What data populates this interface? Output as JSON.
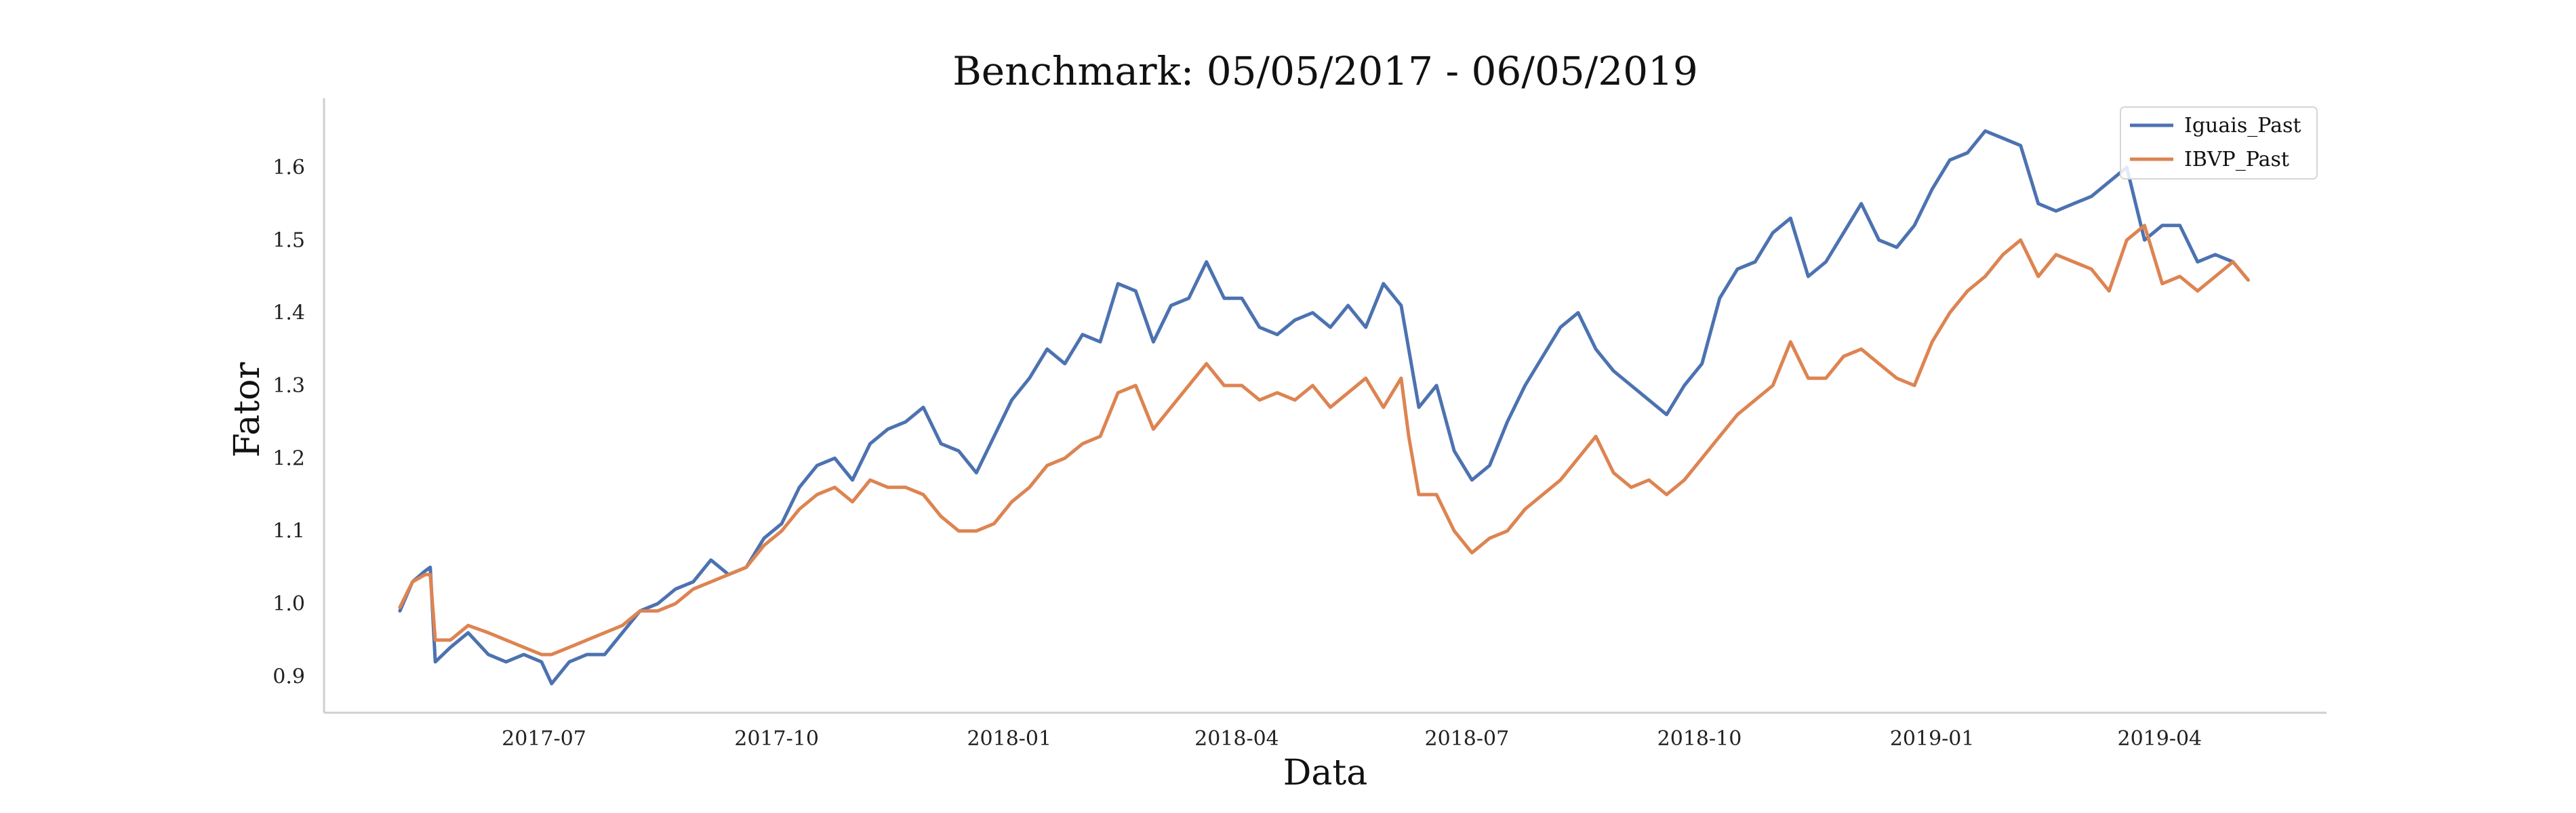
{
  "chart_data": {
    "type": "line",
    "title": "Benchmark: 05/05/2017 - 06/05/2019",
    "xlabel": "Data",
    "ylabel": "Fator",
    "x_ticks": [
      "2017-07",
      "2017-10",
      "2018-01",
      "2018-04",
      "2018-07",
      "2018-10",
      "2019-01",
      "2019-04"
    ],
    "y_ticks": [
      "0.9",
      "1.0",
      "1.1",
      "1.2",
      "1.3",
      "1.4",
      "1.5",
      "1.6"
    ],
    "xlim": [
      "2017-04-05",
      "2019-06-06"
    ],
    "ylim": [
      0.85,
      1.695
    ],
    "grid": false,
    "legend": "top-right",
    "series": [
      {
        "name": "Iguais_Past",
        "color": "#4c72b0",
        "points": [
          [
            "2017-05-05",
            0.99
          ],
          [
            "2017-05-10",
            1.03
          ],
          [
            "2017-05-15",
            1.045
          ],
          [
            "2017-05-17",
            1.05
          ],
          [
            "2017-05-19",
            0.92
          ],
          [
            "2017-05-25",
            0.94
          ],
          [
            "2017-06-01",
            0.96
          ],
          [
            "2017-06-09",
            0.93
          ],
          [
            "2017-06-16",
            0.92
          ],
          [
            "2017-06-23",
            0.93
          ],
          [
            "2017-06-30",
            0.92
          ],
          [
            "2017-07-04",
            0.89
          ],
          [
            "2017-07-11",
            0.92
          ],
          [
            "2017-07-18",
            0.93
          ],
          [
            "2017-07-25",
            0.93
          ],
          [
            "2017-08-01",
            0.96
          ],
          [
            "2017-08-08",
            0.99
          ],
          [
            "2017-08-15",
            1.0
          ],
          [
            "2017-08-22",
            1.02
          ],
          [
            "2017-08-29",
            1.03
          ],
          [
            "2017-09-05",
            1.06
          ],
          [
            "2017-09-12",
            1.04
          ],
          [
            "2017-09-19",
            1.05
          ],
          [
            "2017-09-26",
            1.09
          ],
          [
            "2017-10-03",
            1.11
          ],
          [
            "2017-10-10",
            1.16
          ],
          [
            "2017-10-17",
            1.19
          ],
          [
            "2017-10-24",
            1.2
          ],
          [
            "2017-10-31",
            1.17
          ],
          [
            "2017-11-07",
            1.22
          ],
          [
            "2017-11-14",
            1.24
          ],
          [
            "2017-11-21",
            1.25
          ],
          [
            "2017-11-28",
            1.27
          ],
          [
            "2017-12-05",
            1.22
          ],
          [
            "2017-12-12",
            1.21
          ],
          [
            "2017-12-19",
            1.18
          ],
          [
            "2017-12-26",
            1.23
          ],
          [
            "2018-01-02",
            1.28
          ],
          [
            "2018-01-09",
            1.31
          ],
          [
            "2018-01-16",
            1.35
          ],
          [
            "2018-01-23",
            1.33
          ],
          [
            "2018-01-30",
            1.37
          ],
          [
            "2018-02-06",
            1.36
          ],
          [
            "2018-02-13",
            1.44
          ],
          [
            "2018-02-20",
            1.43
          ],
          [
            "2018-02-27",
            1.36
          ],
          [
            "2018-03-06",
            1.41
          ],
          [
            "2018-03-13",
            1.42
          ],
          [
            "2018-03-20",
            1.47
          ],
          [
            "2018-03-27",
            1.42
          ],
          [
            "2018-04-03",
            1.42
          ],
          [
            "2018-04-10",
            1.38
          ],
          [
            "2018-04-17",
            1.37
          ],
          [
            "2018-04-24",
            1.39
          ],
          [
            "2018-05-01",
            1.4
          ],
          [
            "2018-05-08",
            1.38
          ],
          [
            "2018-05-15",
            1.41
          ],
          [
            "2018-05-22",
            1.38
          ],
          [
            "2018-05-29",
            1.44
          ],
          [
            "2018-06-05",
            1.41
          ],
          [
            "2018-06-08",
            1.35
          ],
          [
            "2018-06-12",
            1.27
          ],
          [
            "2018-06-19",
            1.3
          ],
          [
            "2018-06-26",
            1.21
          ],
          [
            "2018-07-03",
            1.17
          ],
          [
            "2018-07-10",
            1.19
          ],
          [
            "2018-07-17",
            1.25
          ],
          [
            "2018-07-24",
            1.3
          ],
          [
            "2018-07-31",
            1.34
          ],
          [
            "2018-08-07",
            1.38
          ],
          [
            "2018-08-14",
            1.4
          ],
          [
            "2018-08-21",
            1.35
          ],
          [
            "2018-08-28",
            1.32
          ],
          [
            "2018-09-04",
            1.3
          ],
          [
            "2018-09-11",
            1.28
          ],
          [
            "2018-09-18",
            1.26
          ],
          [
            "2018-09-25",
            1.3
          ],
          [
            "2018-10-02",
            1.33
          ],
          [
            "2018-10-09",
            1.42
          ],
          [
            "2018-10-16",
            1.46
          ],
          [
            "2018-10-23",
            1.47
          ],
          [
            "2018-10-30",
            1.51
          ],
          [
            "2018-11-06",
            1.53
          ],
          [
            "2018-11-13",
            1.45
          ],
          [
            "2018-11-20",
            1.47
          ],
          [
            "2018-11-27",
            1.51
          ],
          [
            "2018-12-04",
            1.55
          ],
          [
            "2018-12-11",
            1.5
          ],
          [
            "2018-12-18",
            1.49
          ],
          [
            "2018-12-25",
            1.52
          ],
          [
            "2019-01-01",
            1.57
          ],
          [
            "2019-01-08",
            1.61
          ],
          [
            "2019-01-15",
            1.62
          ],
          [
            "2019-01-22",
            1.65
          ],
          [
            "2019-01-29",
            1.64
          ],
          [
            "2019-02-05",
            1.63
          ],
          [
            "2019-02-12",
            1.55
          ],
          [
            "2019-02-19",
            1.54
          ],
          [
            "2019-02-26",
            1.55
          ],
          [
            "2019-03-05",
            1.56
          ],
          [
            "2019-03-12",
            1.58
          ],
          [
            "2019-03-19",
            1.6
          ],
          [
            "2019-03-26",
            1.5
          ],
          [
            "2019-04-02",
            1.52
          ],
          [
            "2019-04-09",
            1.52
          ],
          [
            "2019-04-16",
            1.47
          ],
          [
            "2019-04-23",
            1.48
          ],
          [
            "2019-04-30",
            1.47
          ],
          [
            "2019-05-06",
            1.445
          ]
        ]
      },
      {
        "name": "IBVP_Past",
        "color": "#dd8452",
        "points": [
          [
            "2017-05-05",
            0.995
          ],
          [
            "2017-05-10",
            1.03
          ],
          [
            "2017-05-15",
            1.04
          ],
          [
            "2017-05-17",
            1.04
          ],
          [
            "2017-05-19",
            0.95
          ],
          [
            "2017-05-25",
            0.95
          ],
          [
            "2017-06-01",
            0.97
          ],
          [
            "2017-06-09",
            0.96
          ],
          [
            "2017-06-16",
            0.95
          ],
          [
            "2017-06-23",
            0.94
          ],
          [
            "2017-06-30",
            0.93
          ],
          [
            "2017-07-04",
            0.93
          ],
          [
            "2017-07-11",
            0.94
          ],
          [
            "2017-07-18",
            0.95
          ],
          [
            "2017-07-25",
            0.96
          ],
          [
            "2017-08-01",
            0.97
          ],
          [
            "2017-08-08",
            0.99
          ],
          [
            "2017-08-15",
            0.99
          ],
          [
            "2017-08-22",
            1.0
          ],
          [
            "2017-08-29",
            1.02
          ],
          [
            "2017-09-05",
            1.03
          ],
          [
            "2017-09-12",
            1.04
          ],
          [
            "2017-09-19",
            1.05
          ],
          [
            "2017-09-26",
            1.08
          ],
          [
            "2017-10-03",
            1.1
          ],
          [
            "2017-10-10",
            1.13
          ],
          [
            "2017-10-17",
            1.15
          ],
          [
            "2017-10-24",
            1.16
          ],
          [
            "2017-10-31",
            1.14
          ],
          [
            "2017-11-07",
            1.17
          ],
          [
            "2017-11-14",
            1.16
          ],
          [
            "2017-11-21",
            1.16
          ],
          [
            "2017-11-28",
            1.15
          ],
          [
            "2017-12-05",
            1.12
          ],
          [
            "2017-12-12",
            1.1
          ],
          [
            "2017-12-19",
            1.1
          ],
          [
            "2017-12-26",
            1.11
          ],
          [
            "2018-01-02",
            1.14
          ],
          [
            "2018-01-09",
            1.16
          ],
          [
            "2018-01-16",
            1.19
          ],
          [
            "2018-01-23",
            1.2
          ],
          [
            "2018-01-30",
            1.22
          ],
          [
            "2018-02-06",
            1.23
          ],
          [
            "2018-02-13",
            1.29
          ],
          [
            "2018-02-20",
            1.3
          ],
          [
            "2018-02-27",
            1.24
          ],
          [
            "2018-03-06",
            1.27
          ],
          [
            "2018-03-13",
            1.3
          ],
          [
            "2018-03-20",
            1.33
          ],
          [
            "2018-03-27",
            1.3
          ],
          [
            "2018-04-03",
            1.3
          ],
          [
            "2018-04-10",
            1.28
          ],
          [
            "2018-04-17",
            1.29
          ],
          [
            "2018-04-24",
            1.28
          ],
          [
            "2018-05-01",
            1.3
          ],
          [
            "2018-05-08",
            1.27
          ],
          [
            "2018-05-15",
            1.29
          ],
          [
            "2018-05-22",
            1.31
          ],
          [
            "2018-05-29",
            1.27
          ],
          [
            "2018-06-05",
            1.31
          ],
          [
            "2018-06-08",
            1.23
          ],
          [
            "2018-06-12",
            1.15
          ],
          [
            "2018-06-19",
            1.15
          ],
          [
            "2018-06-26",
            1.1
          ],
          [
            "2018-07-03",
            1.07
          ],
          [
            "2018-07-10",
            1.09
          ],
          [
            "2018-07-17",
            1.1
          ],
          [
            "2018-07-24",
            1.13
          ],
          [
            "2018-07-31",
            1.15
          ],
          [
            "2018-08-07",
            1.17
          ],
          [
            "2018-08-14",
            1.2
          ],
          [
            "2018-08-21",
            1.23
          ],
          [
            "2018-08-28",
            1.18
          ],
          [
            "2018-09-04",
            1.16
          ],
          [
            "2018-09-11",
            1.17
          ],
          [
            "2018-09-18",
            1.15
          ],
          [
            "2018-09-25",
            1.17
          ],
          [
            "2018-10-02",
            1.2
          ],
          [
            "2018-10-09",
            1.23
          ],
          [
            "2018-10-16",
            1.26
          ],
          [
            "2018-10-23",
            1.28
          ],
          [
            "2018-10-30",
            1.3
          ],
          [
            "2018-11-06",
            1.36
          ],
          [
            "2018-11-13",
            1.31
          ],
          [
            "2018-11-20",
            1.31
          ],
          [
            "2018-11-27",
            1.34
          ],
          [
            "2018-12-04",
            1.35
          ],
          [
            "2018-12-11",
            1.33
          ],
          [
            "2018-12-18",
            1.31
          ],
          [
            "2018-12-25",
            1.3
          ],
          [
            "2019-01-01",
            1.36
          ],
          [
            "2019-01-08",
            1.4
          ],
          [
            "2019-01-15",
            1.43
          ],
          [
            "2019-01-22",
            1.45
          ],
          [
            "2019-01-29",
            1.48
          ],
          [
            "2019-02-05",
            1.5
          ],
          [
            "2019-02-12",
            1.45
          ],
          [
            "2019-02-19",
            1.48
          ],
          [
            "2019-02-26",
            1.47
          ],
          [
            "2019-03-05",
            1.46
          ],
          [
            "2019-03-12",
            1.43
          ],
          [
            "2019-03-19",
            1.5
          ],
          [
            "2019-03-26",
            1.52
          ],
          [
            "2019-04-02",
            1.44
          ],
          [
            "2019-04-09",
            1.45
          ],
          [
            "2019-04-16",
            1.43
          ],
          [
            "2019-04-23",
            1.45
          ],
          [
            "2019-04-30",
            1.47
          ],
          [
            "2019-05-06",
            1.445
          ]
        ]
      }
    ]
  }
}
